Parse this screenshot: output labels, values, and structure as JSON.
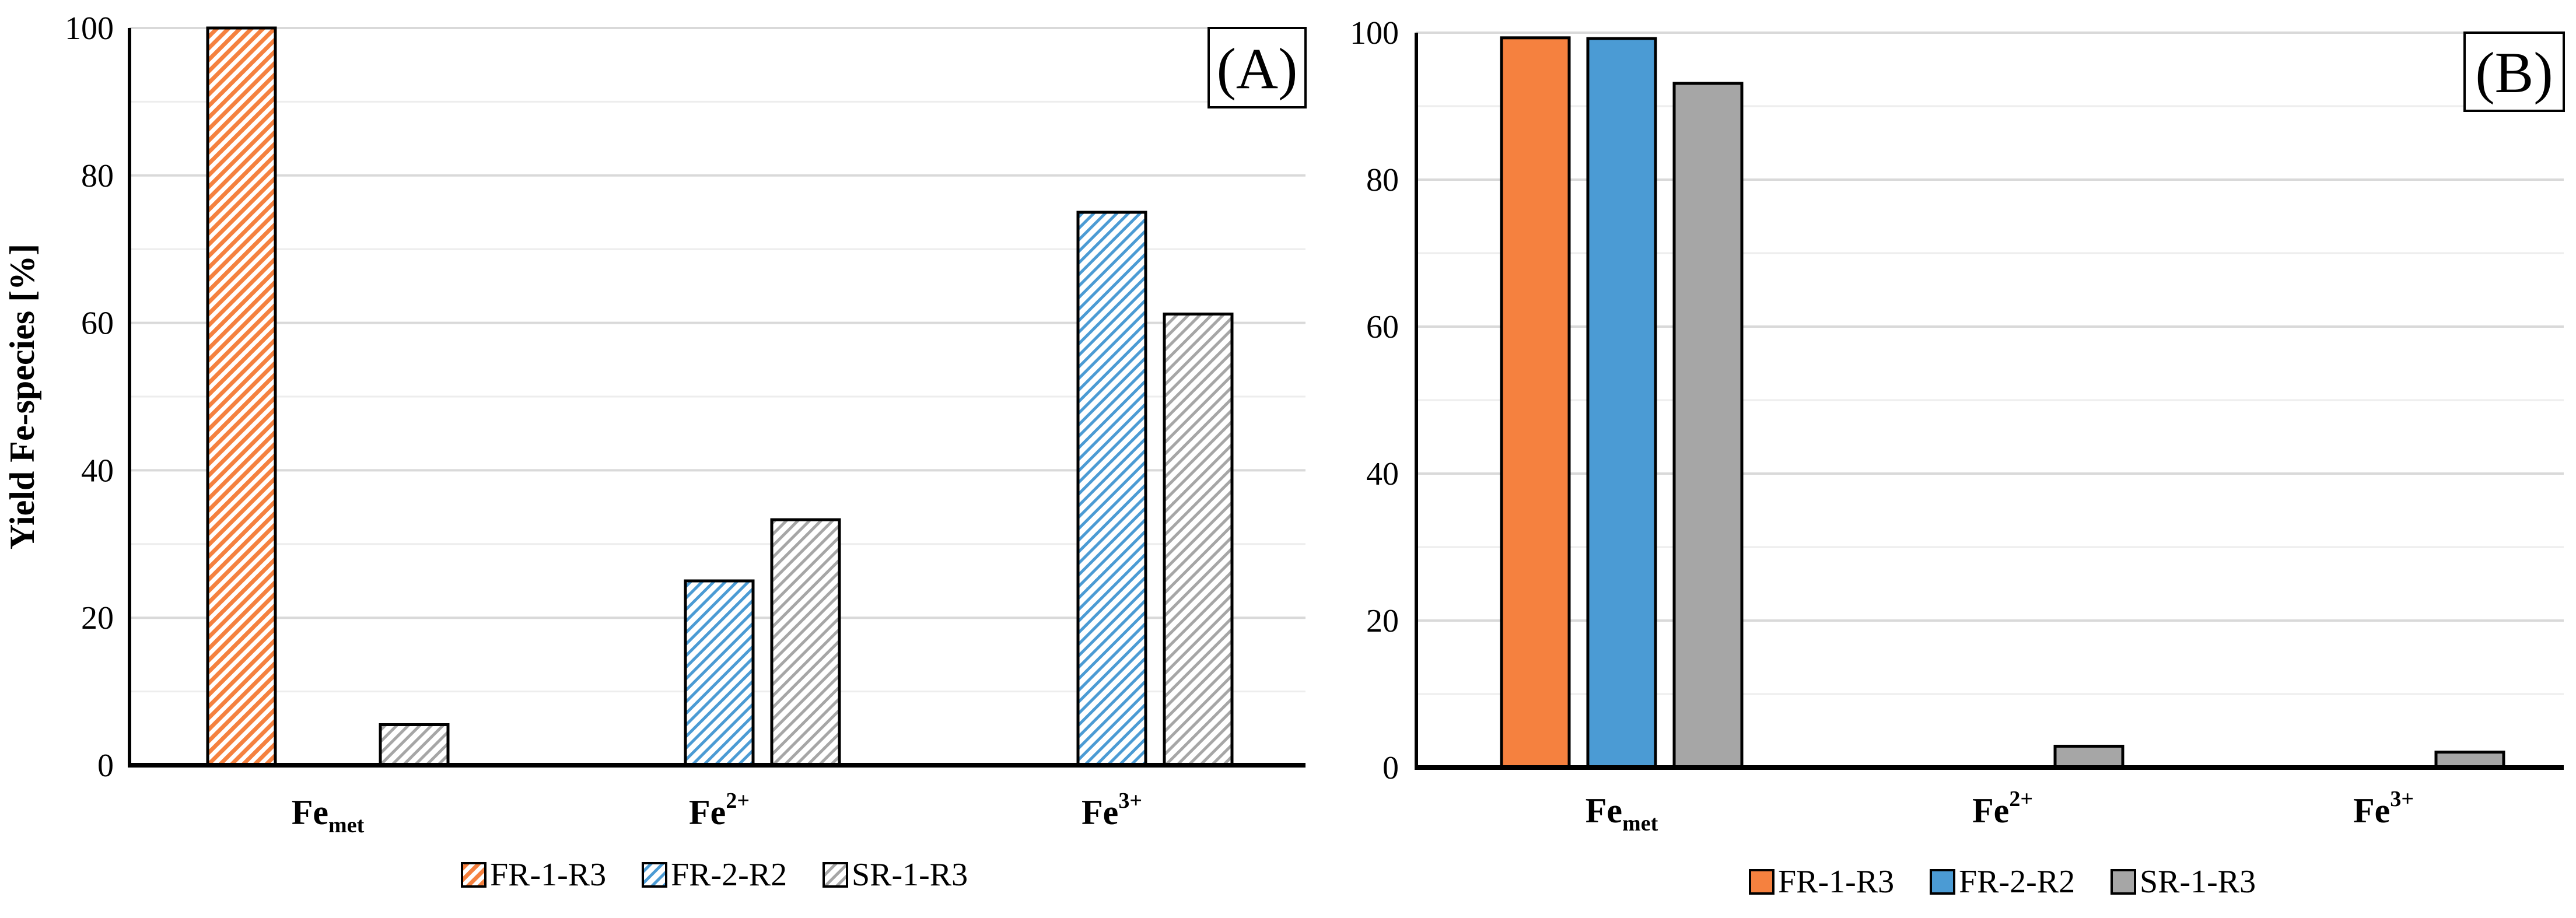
{
  "chart_data": [
    {
      "type": "bar",
      "panel_label": "(A)",
      "pattern": "hatched",
      "ylabel": "Yield Fe-species [%]",
      "xlabel": "",
      "ylim": [
        0,
        100
      ],
      "yticks": [
        0,
        20,
        40,
        60,
        80,
        100
      ],
      "grid": true,
      "legend_position": "bottom",
      "categories": [
        {
          "base": "Fe",
          "sub": "met",
          "sup": ""
        },
        {
          "base": "Fe",
          "sub": "",
          "sup": "2+"
        },
        {
          "base": "Fe",
          "sub": "",
          "sup": "3+"
        }
      ],
      "series": [
        {
          "name": "FR-1-R3",
          "color": "#F5813F",
          "values": [
            100,
            0,
            0
          ]
        },
        {
          "name": "FR-2-R2",
          "color": "#4B9BD4",
          "values": [
            0,
            25,
            75
          ]
        },
        {
          "name": "SR-1-R3",
          "color": "#A6A6A6",
          "values": [
            5.5,
            33.3,
            61.2
          ]
        }
      ]
    },
    {
      "type": "bar",
      "panel_label": "(B)",
      "pattern": "solid",
      "ylabel": "",
      "xlabel": "",
      "ylim": [
        0,
        100
      ],
      "yticks": [
        0,
        20,
        40,
        60,
        80,
        100
      ],
      "grid": true,
      "legend_position": "bottom",
      "categories": [
        {
          "base": "Fe",
          "sub": "met",
          "sup": ""
        },
        {
          "base": "Fe",
          "sub": "",
          "sup": "2+"
        },
        {
          "base": "Fe",
          "sub": "",
          "sup": "3+"
        }
      ],
      "series": [
        {
          "name": "FR-1-R3",
          "color": "#F5813F",
          "values": [
            99.3,
            0,
            0
          ]
        },
        {
          "name": "FR-2-R2",
          "color": "#4B9BD4",
          "values": [
            99.2,
            0,
            0
          ]
        },
        {
          "name": "SR-1-R3",
          "color": "#A6A6A6",
          "values": [
            93.1,
            2.9,
            2.1
          ]
        }
      ]
    }
  ]
}
